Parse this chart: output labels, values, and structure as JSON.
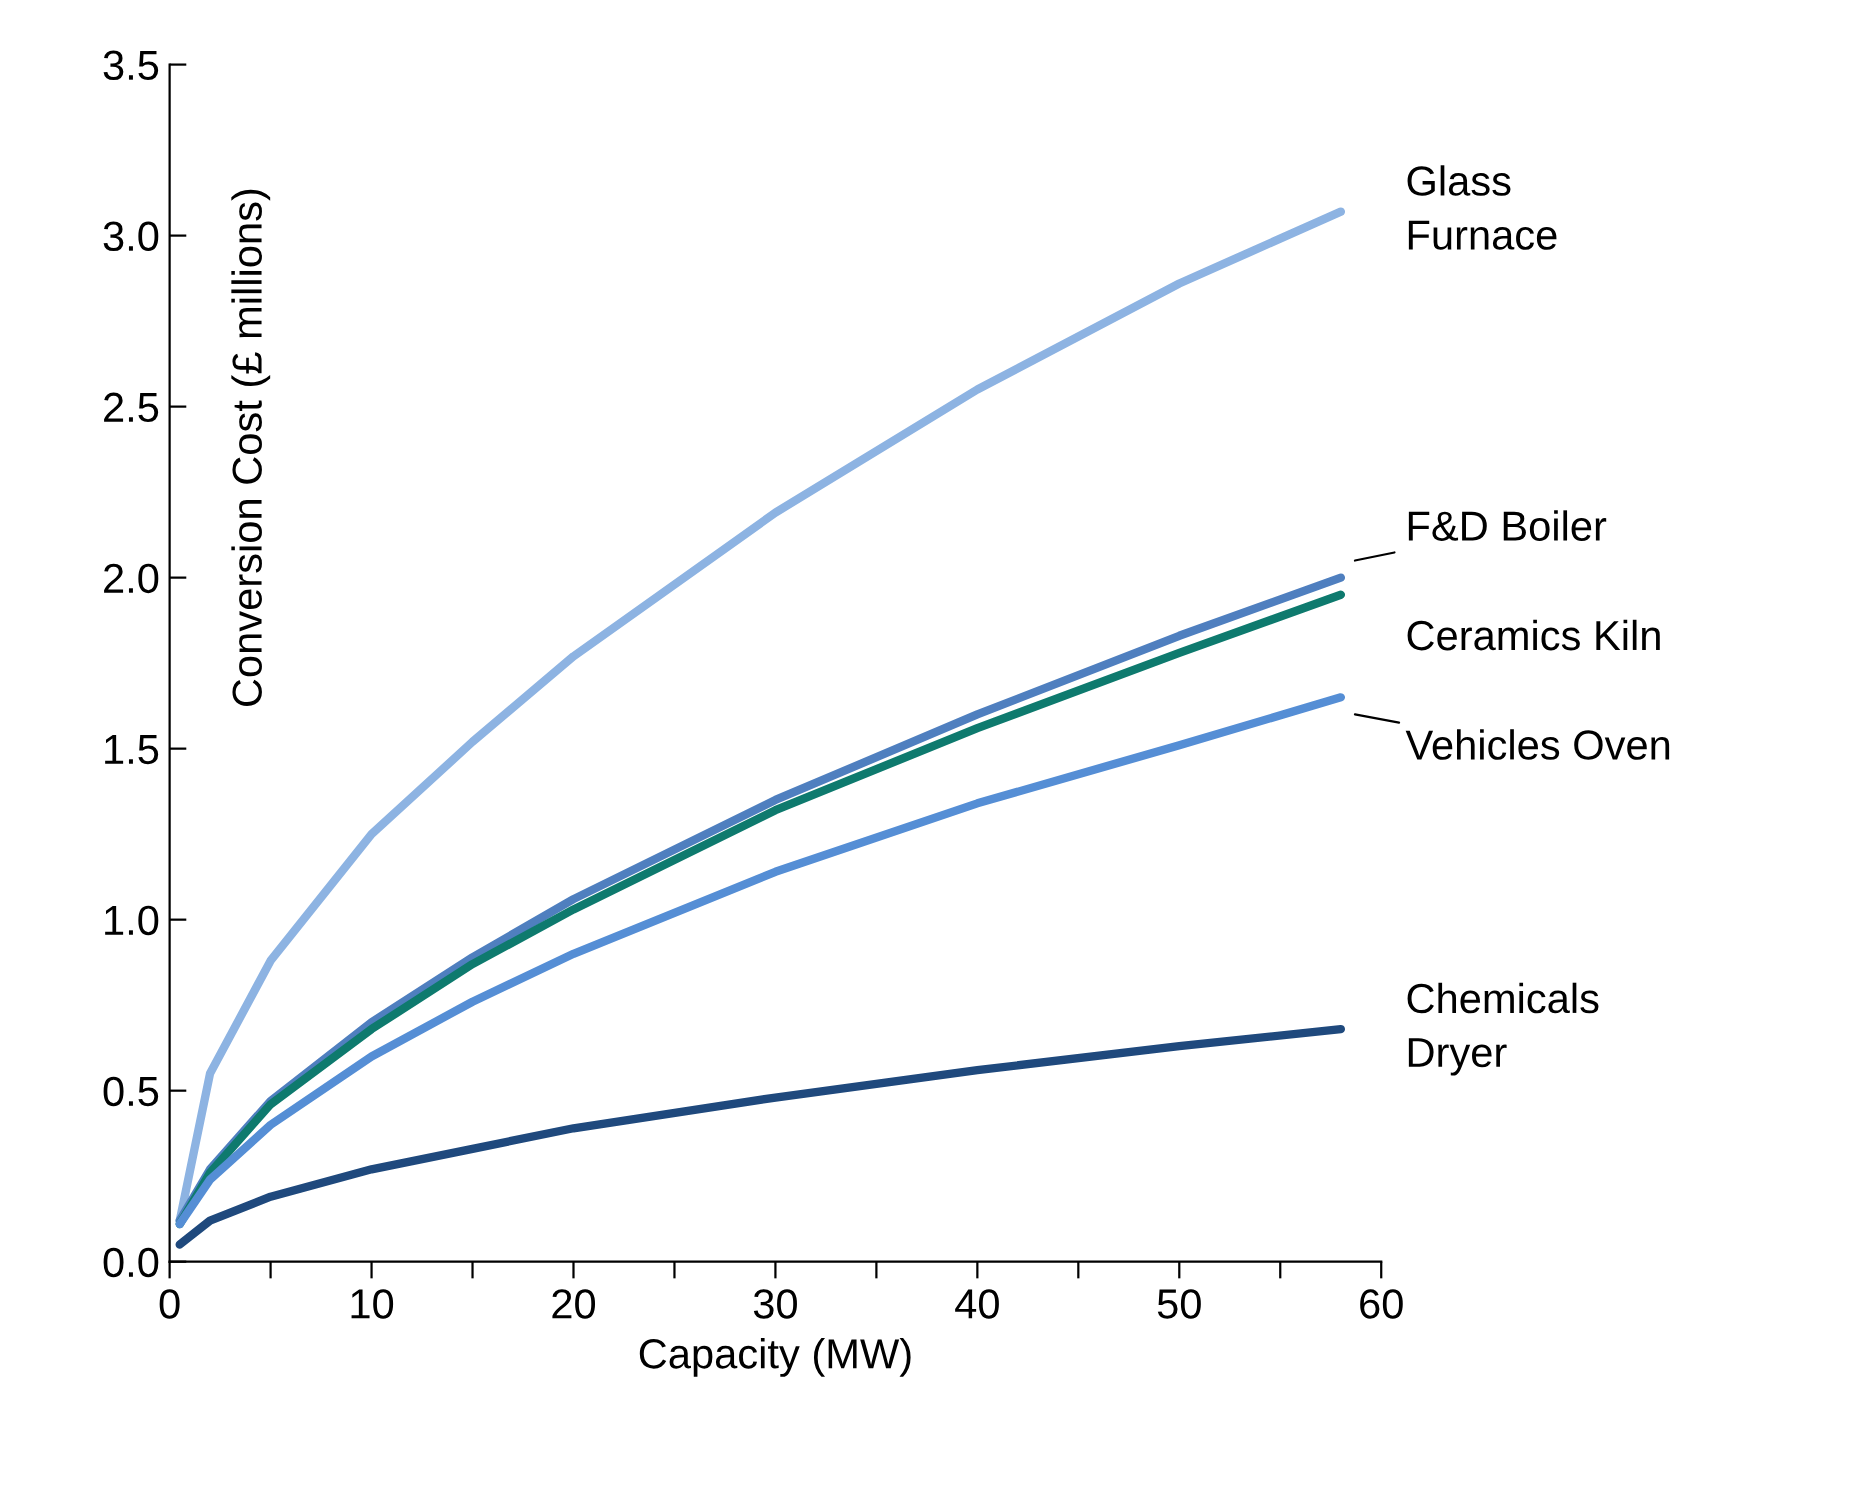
{
  "chart_data": {
    "type": "line",
    "xlabel": "Capacity (MW)",
    "ylabel": "Conversion Cost (£ millions)",
    "series": [
      {
        "name": "Glass\nFurnace",
        "color": "#8db3e2",
        "x": [
          0.5,
          2,
          5,
          10,
          15,
          20,
          30,
          40,
          50,
          58
        ],
        "values": [
          0.12,
          0.55,
          0.88,
          1.25,
          1.52,
          1.77,
          2.19,
          2.55,
          2.86,
          3.07
        ]
      },
      {
        "name": "F&D Boiler",
        "color": "#4f7fbf",
        "x": [
          0.5,
          2,
          5,
          10,
          15,
          20,
          30,
          40,
          50,
          58
        ],
        "values": [
          0.12,
          0.27,
          0.47,
          0.7,
          0.89,
          1.06,
          1.35,
          1.6,
          1.83,
          2.0
        ]
      },
      {
        "name": "Ceramics Kiln",
        "color": "#0e7a6e",
        "x": [
          0.5,
          2,
          5,
          10,
          15,
          20,
          30,
          40,
          50,
          58
        ],
        "values": [
          0.11,
          0.26,
          0.46,
          0.68,
          0.87,
          1.03,
          1.32,
          1.56,
          1.78,
          1.95
        ]
      },
      {
        "name": "Vehicles Oven",
        "color": "#558ed5",
        "x": [
          0.5,
          2,
          5,
          10,
          15,
          20,
          30,
          40,
          50,
          58
        ],
        "values": [
          0.11,
          0.24,
          0.4,
          0.6,
          0.76,
          0.9,
          1.14,
          1.34,
          1.51,
          1.65
        ]
      },
      {
        "name": "Chemicals\nDryer",
        "color": "#1f497d",
        "x": [
          0.5,
          2,
          5,
          10,
          15,
          20,
          30,
          40,
          50,
          58
        ],
        "values": [
          0.05,
          0.12,
          0.19,
          0.27,
          0.33,
          0.39,
          0.48,
          0.56,
          0.63,
          0.68
        ]
      }
    ],
    "xlim": [
      0,
      60
    ],
    "xticks": [
      0,
      {
        "value": 5,
        "label": null
      },
      10,
      {
        "value": 15,
        "label": null
      },
      20,
      {
        "value": 25,
        "label": null
      },
      30,
      {
        "value": 35,
        "label": null
      },
      40,
      {
        "value": 45,
        "label": null
      },
      50,
      {
        "value": 55,
        "label": null
      },
      60
    ],
    "ylim": [
      0,
      3.5
    ],
    "yticks": [
      {
        "value": 0,
        "label": "0.0"
      },
      0.5,
      {
        "value": 1,
        "label": "1.0"
      },
      1.5,
      {
        "value": 2,
        "label": "2.0"
      },
      2.5,
      {
        "value": 3,
        "label": "3.0"
      },
      3.5
    ],
    "grid": false,
    "legend": false,
    "marker": "none",
    "line_style": "solid"
  }
}
